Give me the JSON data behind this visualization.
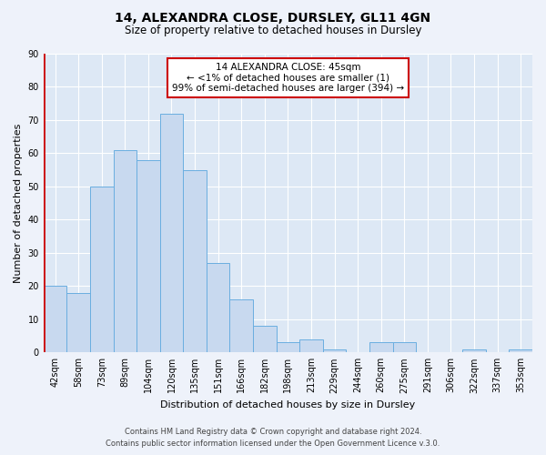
{
  "title": "14, ALEXANDRA CLOSE, DURSLEY, GL11 4GN",
  "subtitle": "Size of property relative to detached houses in Dursley",
  "xlabel": "Distribution of detached houses by size in Dursley",
  "ylabel": "Number of detached properties",
  "footer_lines": [
    "Contains HM Land Registry data © Crown copyright and database right 2024.",
    "Contains public sector information licensed under the Open Government Licence v.3.0."
  ],
  "bin_labels": [
    "42sqm",
    "58sqm",
    "73sqm",
    "89sqm",
    "104sqm",
    "120sqm",
    "135sqm",
    "151sqm",
    "166sqm",
    "182sqm",
    "198sqm",
    "213sqm",
    "229sqm",
    "244sqm",
    "260sqm",
    "275sqm",
    "291sqm",
    "306sqm",
    "322sqm",
    "337sqm",
    "353sqm"
  ],
  "bar_values": [
    20,
    18,
    50,
    61,
    58,
    72,
    55,
    27,
    16,
    8,
    3,
    4,
    1,
    0,
    3,
    3,
    0,
    0,
    1,
    0,
    1
  ],
  "bar_color": "#c8d9ef",
  "bar_edgecolor": "#6aaee0",
  "highlight_line_color": "#cc0000",
  "ylim": [
    0,
    90
  ],
  "yticks": [
    0,
    10,
    20,
    30,
    40,
    50,
    60,
    70,
    80,
    90
  ],
  "annotation_box_text": [
    "14 ALEXANDRA CLOSE: 45sqm",
    "← <1% of detached houses are smaller (1)",
    "99% of semi-detached houses are larger (394) →"
  ],
  "annotation_box_color": "#cc0000",
  "background_color": "#eef2fa",
  "plot_bg_color": "#dde8f5",
  "grid_color": "#ffffff",
  "title_fontsize": 10,
  "subtitle_fontsize": 8.5,
  "ylabel_fontsize": 8,
  "xlabel_fontsize": 8,
  "tick_fontsize": 7,
  "footer_fontsize": 6,
  "annot_fontsize": 7.5
}
